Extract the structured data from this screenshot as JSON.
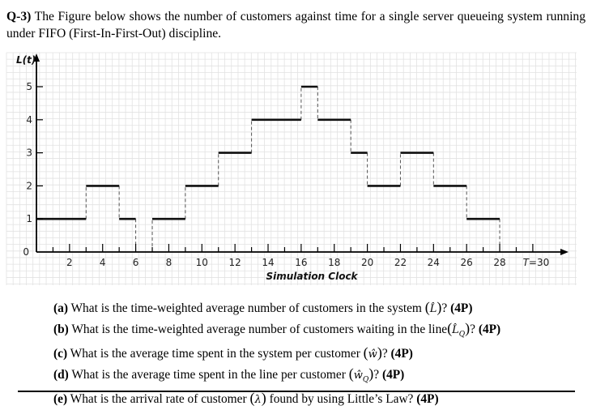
{
  "question": {
    "label": "Q-3)",
    "text": "The Figure below shows the number of customers against time for a single server queueing system running under FIFO (First-In-First-Out) discipline."
  },
  "chart_data": {
    "type": "line",
    "subtype": "step",
    "title": "",
    "xlabel": "Simulation Clock",
    "ylabel": "L(t)",
    "xlim": [
      0,
      30
    ],
    "ylim": [
      0,
      5
    ],
    "x_ticks_major": [
      2,
      4,
      6,
      8,
      10,
      12,
      14,
      16,
      18,
      20,
      22,
      24,
      26,
      28,
      30
    ],
    "x_tick_labels": [
      "2",
      "4",
      "6",
      "8",
      "10",
      "12",
      "14",
      "16",
      "18",
      "20",
      "22",
      "24",
      "26",
      "28",
      "T=30"
    ],
    "x_ticks_minor": [
      1,
      3,
      5,
      7,
      9,
      11,
      13,
      15,
      17,
      19,
      21,
      23,
      25,
      27,
      29
    ],
    "y_ticks": [
      0,
      1,
      2,
      3,
      4,
      5
    ],
    "y_tick_labels": [
      "0",
      "1",
      "2",
      "3",
      "4",
      "5"
    ],
    "grid": true,
    "legend": null,
    "segments": [
      {
        "t_start": 0,
        "t_end": 3,
        "L": 1
      },
      {
        "t_start": 3,
        "t_end": 5,
        "L": 2
      },
      {
        "t_start": 5,
        "t_end": 6,
        "L": 1
      },
      {
        "t_start": 6,
        "t_end": 7,
        "L": 0
      },
      {
        "t_start": 7,
        "t_end": 9,
        "L": 1
      },
      {
        "t_start": 9,
        "t_end": 11,
        "L": 2
      },
      {
        "t_start": 11,
        "t_end": 13,
        "L": 3
      },
      {
        "t_start": 13,
        "t_end": 16,
        "L": 4
      },
      {
        "t_start": 16,
        "t_end": 17,
        "L": 5
      },
      {
        "t_start": 17,
        "t_end": 19,
        "L": 4
      },
      {
        "t_start": 19,
        "t_end": 20,
        "L": 3
      },
      {
        "t_start": 20,
        "t_end": 22,
        "L": 2
      },
      {
        "t_start": 22,
        "t_end": 24,
        "L": 3
      },
      {
        "t_start": 24,
        "t_end": 26,
        "L": 2
      },
      {
        "t_start": 26,
        "t_end": 28,
        "L": 1
      },
      {
        "t_start": 28,
        "t_end": 30,
        "L": 0
      }
    ],
    "x": [
      0,
      3,
      5,
      6,
      7,
      9,
      11,
      13,
      16,
      17,
      19,
      20,
      22,
      24,
      26,
      28,
      30
    ],
    "values": [
      1,
      2,
      1,
      0,
      1,
      2,
      3,
      4,
      5,
      4,
      3,
      2,
      3,
      2,
      1,
      0,
      0
    ],
    "style": {
      "line_color": "#111111",
      "jump_style": "dashed",
      "grid_color": "#e2e2e2"
    }
  },
  "questions": [
    {
      "label": "(a)",
      "pre": "What is the time-weighted average number of customers in the system ",
      "symbol": "L̂",
      "sub": "",
      "post": "? ",
      "points": "(4P)"
    },
    {
      "label": "(b)",
      "pre": "What is the time-weighted average number of customers waiting in the line",
      "symbol": "L̂",
      "sub": "Q",
      "post": "? ",
      "points": "(4P)"
    },
    {
      "label": "(c)",
      "pre": "What is the average time spent in the system per customer ",
      "symbol": "ŵ",
      "sub": "",
      "post": "? ",
      "points": "(4P)"
    },
    {
      "label": "(d)",
      "pre": "What is the average time spent in the line per customer ",
      "symbol": "ŵ",
      "sub": "Q",
      "post": "? ",
      "points": "(4P)"
    },
    {
      "label": "(e)",
      "pre": "What is the arrival rate of customer ",
      "symbol": "λ",
      "sub": "",
      "post": " found by using Little’s Law? ",
      "points": "(4P)"
    }
  ]
}
